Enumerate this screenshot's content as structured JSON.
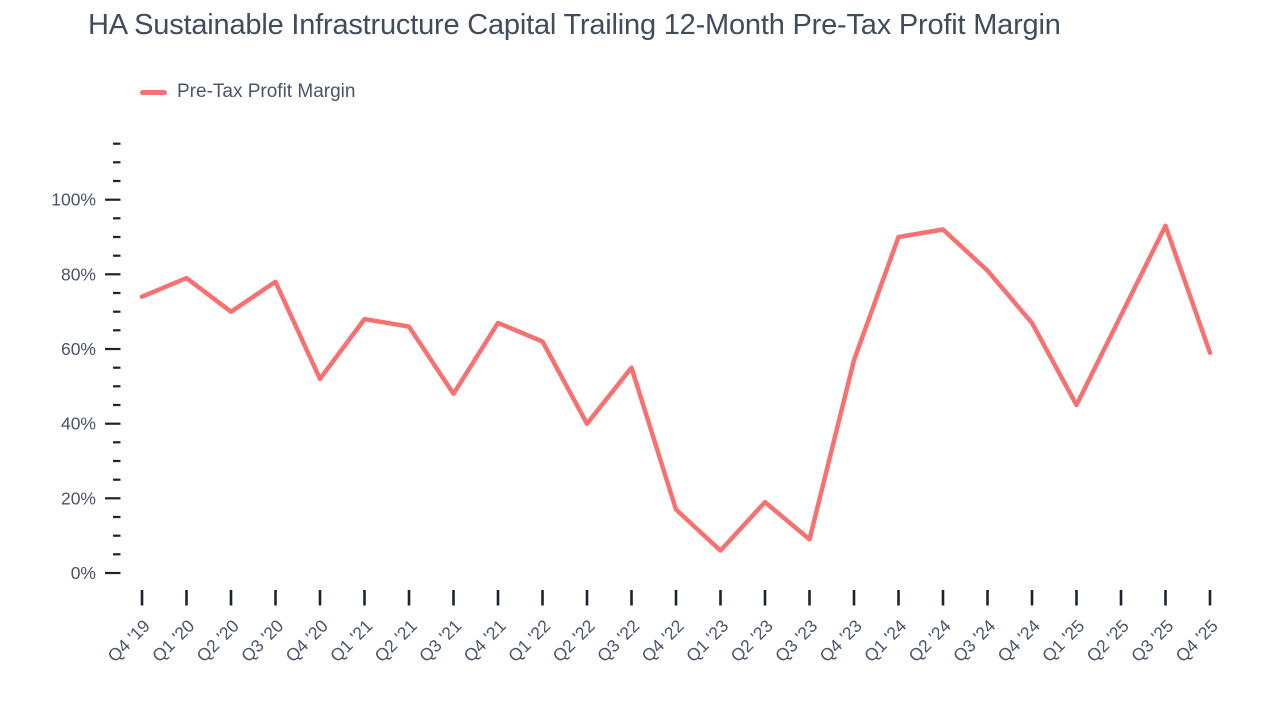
{
  "title": "HA Sustainable Infrastructure Capital Trailing 12-Month Pre-Tax Profit Margin",
  "legend": {
    "label": "Pre-Tax Profit Margin"
  },
  "colors": {
    "series_line": "#f87171",
    "axis_text": "#4a5568",
    "title_text": "#3f4c5c",
    "tick_mark": "#1b2430",
    "background": "#ffffff"
  },
  "chart_data": {
    "type": "line",
    "title": "HA Sustainable Infrastructure Capital Trailing 12-Month Pre-Tax Profit Margin",
    "xlabel": "",
    "ylabel": "",
    "categories": [
      "Q4 '19",
      "Q1 '20",
      "Q2 '20",
      "Q3 '20",
      "Q4 '20",
      "Q1 '21",
      "Q2 '21",
      "Q3 '21",
      "Q4 '21",
      "Q1 '22",
      "Q2 '22",
      "Q3 '22",
      "Q4 '22",
      "Q1 '23",
      "Q2 '23",
      "Q3 '23",
      "Q4 '23",
      "Q1 '24",
      "Q2 '24",
      "Q3 '24",
      "Q4 '24",
      "Q1 '25",
      "Q2 '25",
      "Q3 '25",
      "Q4 '25"
    ],
    "series": [
      {
        "name": "Pre-Tax Profit Margin",
        "color": "#f87171",
        "values": [
          74,
          79,
          70,
          78,
          52,
          68,
          66,
          48,
          67,
          62,
          40,
          55,
          17,
          6,
          19,
          9,
          57,
          90,
          92,
          81,
          67,
          45,
          69,
          93,
          59
        ]
      }
    ],
    "unit": "%",
    "ylim": [
      0,
      115
    ],
    "y_ticks": [
      {
        "value": 100,
        "label": "100%"
      },
      {
        "value": 80,
        "label": "80%"
      },
      {
        "value": 60,
        "label": "60%"
      },
      {
        "value": 40,
        "label": "40%"
      },
      {
        "value": 20,
        "label": "20%"
      },
      {
        "value": 0,
        "label": "0%"
      }
    ],
    "y_minor_tick_step": 5,
    "grid": false,
    "legend_position": "top-left",
    "x_label_rotation": -45
  }
}
